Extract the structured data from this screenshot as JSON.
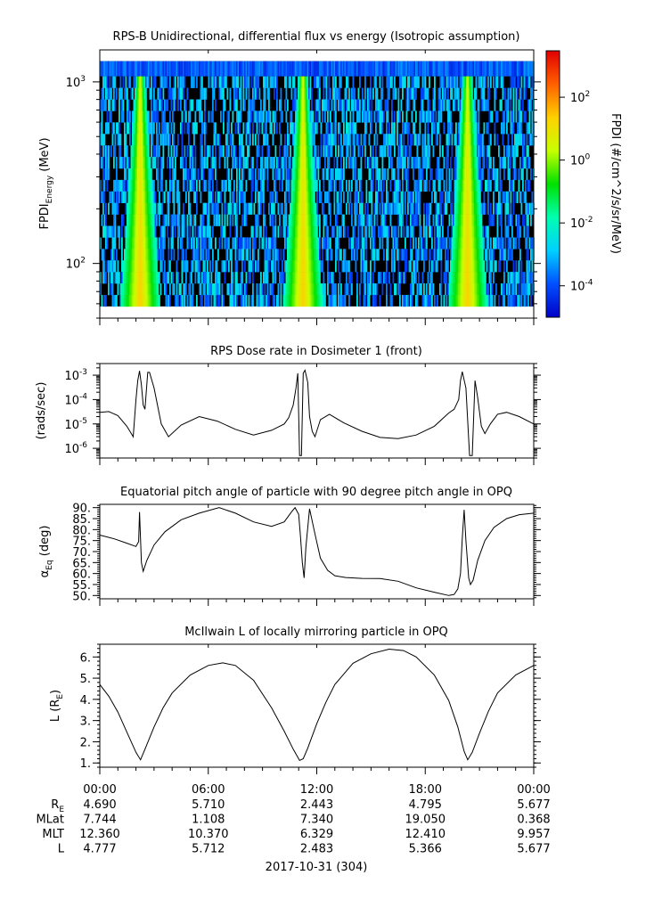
{
  "chart_data": [
    {
      "type": "heatmap",
      "title": "RPS-B  Unidirectional, differential flux vs energy (Isotropic assumption)",
      "ylabel": "FPDI_Energy (MeV)",
      "ylabel_main": "FPDI",
      "ylabel_sub": "Energy",
      "ylabel_unit": " (MeV)",
      "yscale": "log",
      "ylim": [
        50,
        1500
      ],
      "y_ticks": [
        {
          "value": 100,
          "label": "10",
          "exp": "2"
        },
        {
          "value": 1000,
          "label": "10",
          "exp": "3"
        }
      ],
      "energy_range_MeV": [
        58,
        1300
      ],
      "x_range_hours": [
        0,
        24
      ],
      "peak_times_hours": [
        2.2,
        11.2,
        20.3
      ],
      "colorbar": {
        "label": "FPDI (#/cm^2/s/sr/MeV)",
        "scale": "log",
        "range": [
          1e-05,
          3000
        ],
        "ticks": [
          {
            "value": 100,
            "label": "10",
            "exp": "2"
          },
          {
            "value": 1,
            "label": "10",
            "exp": "0"
          },
          {
            "value": 0.01,
            "label": "10",
            "exp": "-2"
          },
          {
            "value": 0.0001,
            "label": "10",
            "exp": "-4"
          }
        ],
        "colors": [
          "#0000c8",
          "#0050ff",
          "#00d0ff",
          "#00ffb0",
          "#00e000",
          "#c8ff00",
          "#ffd000",
          "#ff6000",
          "#e00000"
        ]
      }
    },
    {
      "type": "line",
      "title": "RPS  Dose rate in Dosimeter 1 (front)",
      "ylabel": "(rads/sec)",
      "yscale": "log",
      "ylim": [
        4e-07,
        0.003
      ],
      "y_ticks": [
        {
          "value": 0.001,
          "label": "10",
          "exp": "-3"
        },
        {
          "value": 0.0001,
          "label": "10",
          "exp": "-4"
        },
        {
          "value": 1e-05,
          "label": "10",
          "exp": "-5"
        },
        {
          "value": 1e-06,
          "label": "10",
          "exp": "-6"
        }
      ],
      "x_hours": [
        0,
        0.5,
        1.0,
        1.5,
        1.85,
        2.0,
        2.1,
        2.2,
        2.3,
        2.4,
        2.5,
        2.65,
        2.75,
        3.0,
        3.4,
        3.8,
        4.5,
        5.5,
        6.5,
        7.5,
        8.5,
        9.5,
        10.2,
        10.45,
        10.7,
        10.85,
        10.95,
        11.05,
        11.15,
        11.25,
        11.35,
        11.5,
        11.6,
        11.75,
        11.9,
        12.2,
        12.7,
        13.5,
        14.5,
        15.5,
        16.5,
        17.5,
        18.5,
        19.3,
        19.6,
        19.85,
        19.95,
        20.05,
        20.25,
        20.45,
        20.6,
        20.75,
        20.9,
        21.1,
        21.3,
        21.6,
        22.0,
        22.5,
        23.2,
        24.0
      ],
      "values": [
        3e-05,
        3.2e-05,
        2.2e-05,
        8e-06,
        3e-06,
        0.0001,
        0.0006,
        0.0015,
        0.0004,
        6e-05,
        4e-05,
        0.0013,
        0.0013,
        0.0003,
        1e-05,
        3e-06,
        9e-06,
        2e-05,
        1.3e-05,
        6e-06,
        3.5e-06,
        5.5e-06,
        1e-05,
        1.8e-05,
        6e-05,
        0.0003,
        0.0012,
        5e-07,
        5e-07,
        0.0012,
        0.0016,
        0.0005,
        2e-05,
        5e-06,
        3e-06,
        1.5e-05,
        2.5e-05,
        1.1e-05,
        5e-06,
        2.8e-06,
        2.5e-06,
        3.5e-06,
        8e-06,
        2.8e-05,
        4e-05,
        0.0001,
        0.0006,
        0.0014,
        0.0003,
        5e-07,
        5e-07,
        0.0006,
        0.00012,
        8e-06,
        4e-06,
        1e-05,
        2.5e-05,
        3e-05,
        2e-05,
        1e-05
      ]
    },
    {
      "type": "line",
      "title": "Equatorial pitch angle of particle with 90 degree pitch angle in OPQ",
      "ylabel": "α_Eq (deg)",
      "ylabel_main": "α",
      "ylabel_sub": "Eq",
      "ylabel_unit": " (deg)",
      "ylim": [
        48.5,
        91.5
      ],
      "y_ticks": [
        90,
        85,
        80,
        75,
        70,
        65,
        60,
        55,
        50
      ],
      "x_hours": [
        0,
        0.8,
        1.5,
        2.0,
        2.15,
        2.2,
        2.3,
        2.4,
        2.6,
        3.0,
        3.6,
        4.5,
        5.5,
        6.6,
        7.5,
        8.5,
        9.5,
        10.2,
        10.6,
        10.8,
        11.0,
        11.1,
        11.2,
        11.3,
        11.4,
        11.6,
        11.9,
        12.2,
        12.6,
        13.0,
        13.6,
        14.5,
        15.5,
        16.5,
        17.5,
        18.5,
        19.3,
        19.6,
        19.8,
        19.95,
        20.05,
        20.15,
        20.25,
        20.4,
        20.5,
        20.65,
        20.9,
        21.3,
        21.8,
        22.5,
        23.2,
        24.0
      ],
      "values": [
        77.5,
        75.8,
        73.8,
        72.3,
        74.5,
        88.0,
        65.0,
        61.0,
        66.0,
        73.0,
        79.0,
        84.5,
        87.5,
        90.0,
        87.5,
        83.5,
        81.5,
        83.5,
        88.0,
        90.0,
        87.0,
        77.0,
        65.0,
        58.0,
        72.0,
        89.5,
        78.0,
        67.0,
        61.5,
        59.0,
        58.2,
        57.8,
        57.7,
        56.5,
        53.5,
        51.5,
        50.0,
        50.5,
        53.0,
        60.0,
        76.0,
        89.0,
        75.0,
        58.0,
        55.0,
        57.0,
        66.0,
        75.0,
        81.0,
        85.0,
        86.8,
        87.5
      ]
    },
    {
      "type": "line",
      "title": "McIlwain L of locally mirroring particle in OPQ",
      "ylabel": "L (R_E)",
      "ylabel_main": "L (R",
      "ylabel_sub": "E",
      "ylabel_unit": ")",
      "ylim": [
        0.8,
        6.6
      ],
      "y_ticks": [
        6,
        5,
        4,
        3,
        2,
        1
      ],
      "y_tick_labels": [
        "6.",
        "5.",
        "4.",
        "3.",
        "2.",
        "1."
      ],
      "x_hours": [
        0,
        0.5,
        1.0,
        1.5,
        2.0,
        2.25,
        2.5,
        3.0,
        3.5,
        4.0,
        5.0,
        6.0,
        6.8,
        7.5,
        8.5,
        9.5,
        10.2,
        10.7,
        11.05,
        11.25,
        11.5,
        12.0,
        12.5,
        13.0,
        14.0,
        15.0,
        16.0,
        16.8,
        17.5,
        18.5,
        19.3,
        19.8,
        20.15,
        20.35,
        20.6,
        21.0,
        21.5,
        22.0,
        23.0,
        24.0
      ],
      "values": [
        4.7,
        4.15,
        3.4,
        2.45,
        1.5,
        1.15,
        1.65,
        2.7,
        3.6,
        4.3,
        5.15,
        5.6,
        5.72,
        5.6,
        4.9,
        3.6,
        2.5,
        1.65,
        1.12,
        1.2,
        1.7,
        2.85,
        3.85,
        4.7,
        5.7,
        6.15,
        6.37,
        6.3,
        6.0,
        5.15,
        3.95,
        2.7,
        1.55,
        1.15,
        1.5,
        2.4,
        3.45,
        4.3,
        5.15,
        5.6
      ]
    }
  ],
  "x_axis": {
    "tick_labels": [
      "00:00",
      "06:00",
      "12:00",
      "18:00",
      "00:00"
    ],
    "date_label": "2017-10-31 (304)"
  },
  "ephemeris": {
    "rows": [
      {
        "label": "R",
        "label_sub": "E",
        "values": [
          "4.690",
          "5.710",
          "2.443",
          "4.795",
          "5.677"
        ]
      },
      {
        "label": "MLat",
        "label_sub": "",
        "values": [
          "7.744",
          "1.108",
          "7.340",
          "19.050",
          "0.368"
        ]
      },
      {
        "label": "MLT",
        "label_sub": "",
        "values": [
          "12.360",
          "10.370",
          "6.329",
          "12.410",
          "9.957"
        ]
      },
      {
        "label": "L",
        "label_sub": "",
        "values": [
          "4.777",
          "5.712",
          "2.483",
          "5.366",
          "5.677"
        ]
      }
    ]
  }
}
